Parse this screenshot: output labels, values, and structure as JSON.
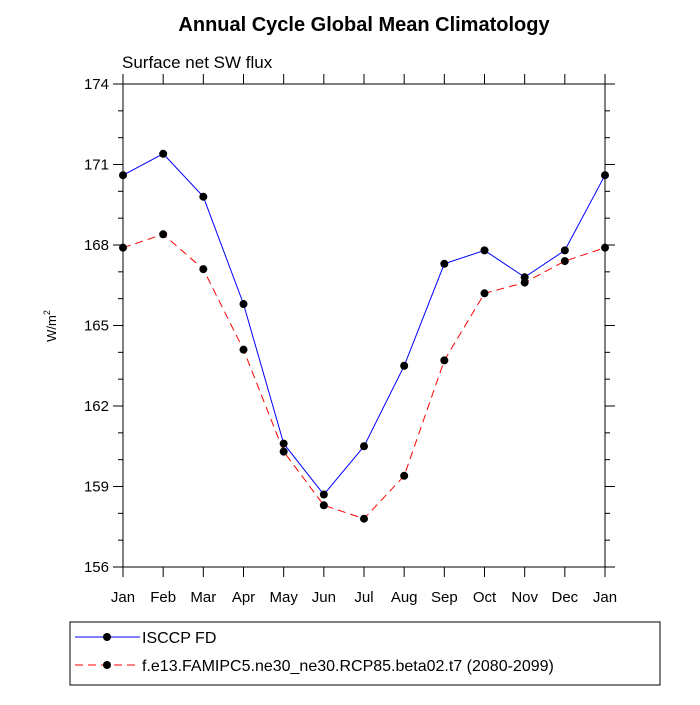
{
  "chart_data": {
    "type": "line",
    "title": "Annual Cycle Global Mean Climatology",
    "subtitle": "Surface net SW flux",
    "xlabel": "",
    "ylabel": "W/m",
    "ylabel_superscript": "2",
    "x_categories": [
      "Jan",
      "Feb",
      "Mar",
      "Apr",
      "May",
      "Jun",
      "Jul",
      "Aug",
      "Sep",
      "Oct",
      "Nov",
      "Dec",
      "Jan"
    ],
    "ylim": [
      156,
      174
    ],
    "yticks": [
      156,
      159,
      162,
      165,
      168,
      171,
      174
    ],
    "ytick_labels": [
      "156",
      "159",
      "162",
      "165",
      "168",
      "171",
      "174"
    ],
    "grid": false,
    "legend_position": "bottom",
    "series": [
      {
        "name": "ISCCP FD",
        "color": "#0000ff",
        "style": "solid",
        "marker": "filled-circle",
        "values": [
          170.6,
          171.4,
          169.8,
          165.8,
          160.6,
          158.7,
          160.5,
          163.5,
          167.3,
          167.8,
          166.8,
          167.8,
          170.6
        ]
      },
      {
        "name": "f.e13.FAMIPC5.ne30_ne30.RCP85.beta02.t7 (2080-2099)",
        "color": "#ff0000",
        "style": "dashed",
        "marker": "filled-circle",
        "values": [
          167.9,
          168.4,
          167.1,
          164.1,
          160.3,
          158.3,
          157.8,
          159.4,
          163.7,
          166.2,
          166.6,
          167.4,
          167.9
        ]
      }
    ]
  }
}
